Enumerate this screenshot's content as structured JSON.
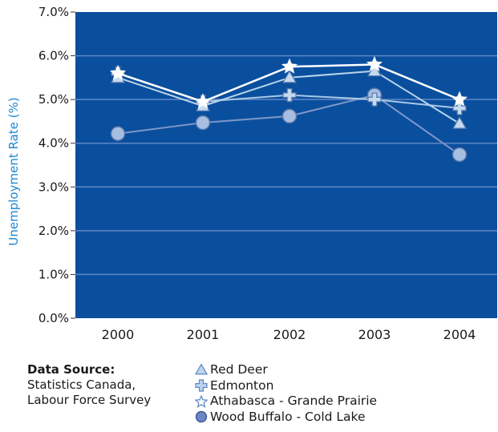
{
  "chart_data": {
    "type": "line",
    "title": "",
    "xlabel": "",
    "ylabel": "Unemployment Rate (%)",
    "categories": [
      "2000",
      "2001",
      "2002",
      "2003",
      "2004"
    ],
    "ylim": [
      0,
      7
    ],
    "yticks": [
      "0.0%",
      "1.0%",
      "2.0%",
      "3.0%",
      "4.0%",
      "5.0%",
      "6.0%",
      "7.0%"
    ],
    "grid": true,
    "legend_position": "bottom",
    "plot_background": "#0a4f9e",
    "series": [
      {
        "name": "Red Deer",
        "marker": "triangle",
        "color": "#b9d3ec",
        "values": [
          5.5,
          4.85,
          5.5,
          5.65,
          4.45
        ]
      },
      {
        "name": "Edmonton",
        "marker": "cross",
        "color": "#aac8e6",
        "values": [
          5.6,
          4.95,
          5.1,
          5.0,
          4.8
        ]
      },
      {
        "name": "Athabasca - Grande Prairie",
        "marker": "star",
        "color": "#ffffff",
        "values": [
          5.6,
          4.95,
          5.75,
          5.8,
          5.0
        ]
      },
      {
        "name": "Wood Buffalo - Cold Lake",
        "marker": "circle",
        "color": "#7f97c8",
        "values": [
          4.22,
          4.47,
          4.62,
          5.1,
          3.74
        ]
      }
    ]
  },
  "source": {
    "title": "Data Source:",
    "lines": [
      "Statistics Canada,",
      "Labour Force Survey"
    ]
  },
  "colors": {
    "plot_background": "#0a4f9e",
    "gridline": "#5f86c4",
    "axis_label": "#1e88d0",
    "marker_fill": "#c4daf0",
    "marker_stroke": "#5a78a8"
  }
}
